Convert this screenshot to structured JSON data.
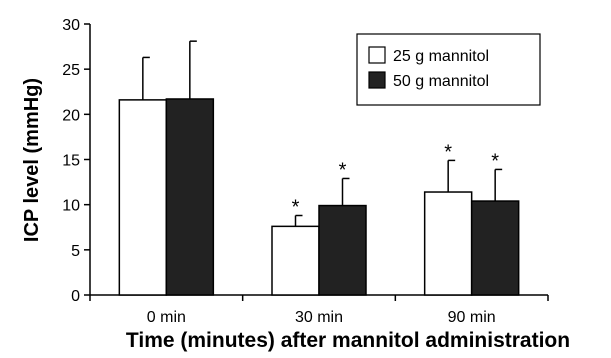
{
  "chart_data": {
    "type": "bar",
    "categories": [
      "0 min",
      "30 min",
      "90 min"
    ],
    "series": [
      {
        "name": "25 g mannitol",
        "values": [
          21.6,
          7.6,
          11.4
        ],
        "errors": [
          4.7,
          1.2,
          3.5
        ],
        "color": "#ffffff",
        "significance": [
          "",
          "*",
          "*"
        ]
      },
      {
        "name": "50 g mannitol",
        "values": [
          21.7,
          9.9,
          10.4
        ],
        "errors": [
          6.4,
          3.0,
          3.5
        ],
        "color": "#222222",
        "significance": [
          "",
          "*",
          "*"
        ]
      }
    ],
    "xlabel": "Time (minutes) after mannitol administration",
    "ylabel": "ICP level (mmHg)",
    "ylim": [
      0,
      30
    ],
    "yticks": [
      0,
      5,
      10,
      15,
      20,
      25,
      30
    ],
    "legend_position": "top-right",
    "grid": false
  }
}
